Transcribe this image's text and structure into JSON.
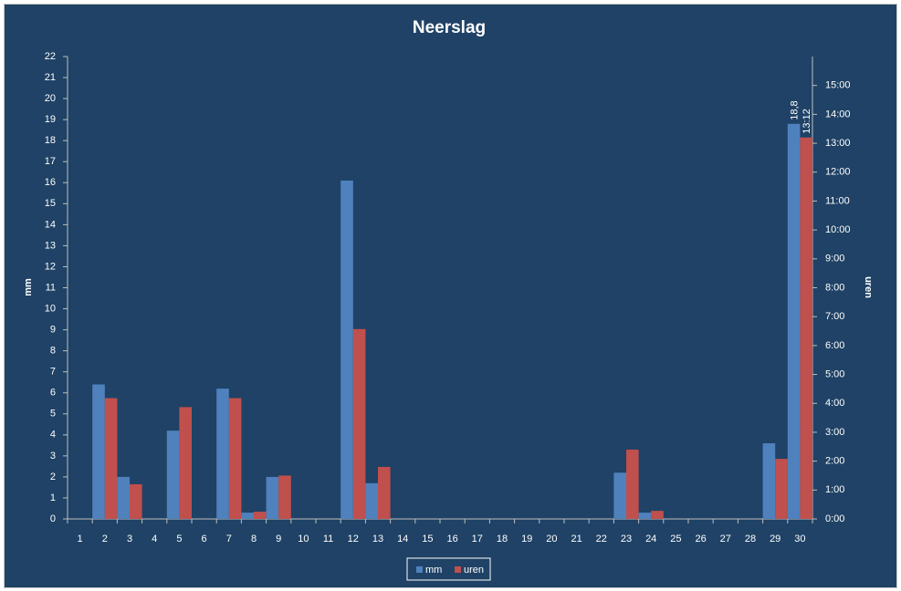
{
  "chart_data": {
    "type": "bar",
    "title": "Neerslag",
    "y_label": "mm",
    "y2_label": "uren",
    "categories": [
      "1",
      "2",
      "3",
      "4",
      "5",
      "6",
      "7",
      "8",
      "9",
      "10",
      "11",
      "12",
      "13",
      "14",
      "15",
      "16",
      "17",
      "18",
      "19",
      "20",
      "21",
      "22",
      "23",
      "24",
      "25",
      "26",
      "27",
      "28",
      "29",
      "30"
    ],
    "series": [
      {
        "name": "mm",
        "color": "#4f81bd",
        "values": [
          0,
          6.4,
          2.0,
          0,
          4.2,
          0,
          6.2,
          0.3,
          2.0,
          0,
          0,
          16.1,
          1.7,
          0,
          0,
          0,
          0,
          0,
          0,
          0,
          0,
          0,
          2.2,
          0.3,
          0,
          0,
          0,
          0,
          3.6,
          18.8
        ],
        "value_labels": [
          null,
          null,
          null,
          null,
          null,
          null,
          null,
          null,
          null,
          null,
          null,
          null,
          null,
          null,
          null,
          null,
          null,
          null,
          null,
          null,
          null,
          null,
          null,
          null,
          null,
          null,
          null,
          null,
          null,
          "18,8"
        ]
      },
      {
        "name": "uren",
        "color": "#c0504d",
        "axis": "y2",
        "values": [
          0,
          4.18,
          1.2,
          0,
          3.87,
          0,
          4.18,
          0.25,
          1.5,
          0,
          0,
          6.57,
          1.8,
          0,
          0,
          0,
          0,
          0,
          0,
          0,
          0,
          0,
          2.4,
          0.28,
          0,
          0,
          0,
          0,
          2.08,
          13.2
        ],
        "value_labels": [
          null,
          null,
          null,
          null,
          null,
          null,
          null,
          null,
          null,
          null,
          null,
          null,
          null,
          null,
          null,
          null,
          null,
          null,
          null,
          null,
          null,
          null,
          null,
          null,
          null,
          null,
          null,
          null,
          null,
          "13:12"
        ]
      }
    ],
    "ylim": [
      0,
      22
    ],
    "yticks": [
      0,
      1,
      2,
      3,
      4,
      5,
      6,
      7,
      8,
      9,
      10,
      11,
      12,
      13,
      14,
      15,
      16,
      17,
      18,
      19,
      20,
      21,
      22
    ],
    "y2lim": [
      0,
      16
    ],
    "y2ticks": [
      {
        "value": 0,
        "label": "0:00"
      },
      {
        "value": 1,
        "label": "1:00"
      },
      {
        "value": 2,
        "label": "2:00"
      },
      {
        "value": 3,
        "label": "3:00"
      },
      {
        "value": 4,
        "label": "4:00"
      },
      {
        "value": 5,
        "label": "5:00"
      },
      {
        "value": 6,
        "label": "6:00"
      },
      {
        "value": 7,
        "label": "7:00"
      },
      {
        "value": 8,
        "label": "8:00"
      },
      {
        "value": 9,
        "label": "9:00"
      },
      {
        "value": 10,
        "label": "10:00"
      },
      {
        "value": 11,
        "label": "11:00"
      },
      {
        "value": 12,
        "label": "12:00"
      },
      {
        "value": 13,
        "label": "13:00"
      },
      {
        "value": 14,
        "label": "14:00"
      },
      {
        "value": 15,
        "label": "15:00"
      }
    ],
    "grid": false,
    "legend": "bottom"
  }
}
